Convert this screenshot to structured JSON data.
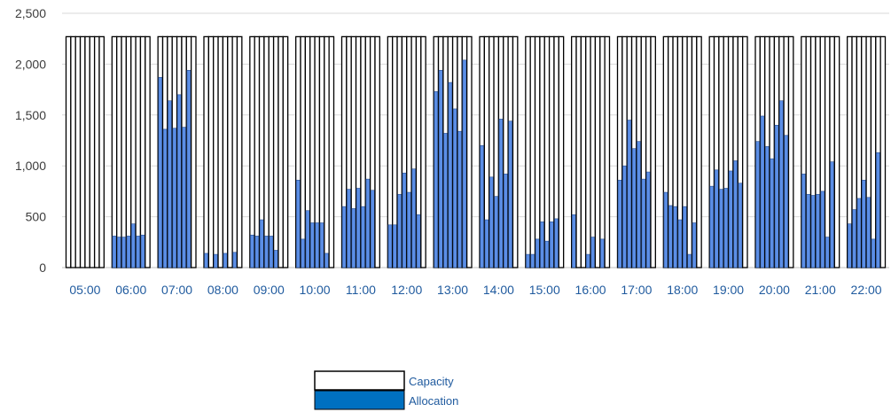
{
  "chart_data": {
    "type": "bar",
    "grouped_by_hour": true,
    "bars_per_hour": 8,
    "categories": [
      "05:00",
      "06:00",
      "07:00",
      "08:00",
      "09:00",
      "10:00",
      "11:00",
      "12:00",
      "13:00",
      "14:00",
      "15:00",
      "16:00",
      "17:00",
      "18:00",
      "19:00",
      "20:00",
      "21:00",
      "22:00"
    ],
    "y_ticks": [
      "0",
      "500",
      "1,000",
      "1,500",
      "2,000",
      "2,500"
    ],
    "ylim": [
      0,
      2500
    ],
    "grid": true,
    "legend_position": "bottom-center",
    "series": [
      {
        "name": "Capacity",
        "style": "outlined",
        "fill": "#ffffff",
        "stroke": "#000000",
        "values": [
          [
            2270,
            2270,
            2270,
            2270,
            2270,
            2270,
            2270,
            2270
          ],
          [
            2270,
            2270,
            2270,
            2270,
            2270,
            2270,
            2270,
            2270
          ],
          [
            2270,
            2270,
            2270,
            2270,
            2270,
            2270,
            2270,
            2270
          ],
          [
            2270,
            2270,
            2270,
            2270,
            2270,
            2270,
            2270,
            2270
          ],
          [
            2270,
            2270,
            2270,
            2270,
            2270,
            2270,
            2270,
            2270
          ],
          [
            2270,
            2270,
            2270,
            2270,
            2270,
            2270,
            2270,
            2270
          ],
          [
            2270,
            2270,
            2270,
            2270,
            2270,
            2270,
            2270,
            2270
          ],
          [
            2270,
            2270,
            2270,
            2270,
            2270,
            2270,
            2270,
            2270
          ],
          [
            2270,
            2270,
            2270,
            2270,
            2270,
            2270,
            2270,
            2270
          ],
          [
            2270,
            2270,
            2270,
            2270,
            2270,
            2270,
            2270,
            2270
          ],
          [
            2270,
            2270,
            2270,
            2270,
            2270,
            2270,
            2270,
            2270
          ],
          [
            2270,
            2270,
            2270,
            2270,
            2270,
            2270,
            2270,
            2270
          ],
          [
            2270,
            2270,
            2270,
            2270,
            2270,
            2270,
            2270,
            2270
          ],
          [
            2270,
            2270,
            2270,
            2270,
            2270,
            2270,
            2270,
            2270
          ],
          [
            2270,
            2270,
            2270,
            2270,
            2270,
            2270,
            2270,
            2270
          ],
          [
            2270,
            2270,
            2270,
            2270,
            2270,
            2270,
            2270,
            2270
          ],
          [
            2270,
            2270,
            2270,
            2270,
            2270,
            2270,
            2270,
            2270
          ],
          [
            2270,
            2270,
            2270,
            2270,
            2270,
            2270,
            2270,
            2270
          ]
        ]
      },
      {
        "name": "Allocation",
        "style": "filled",
        "fill": "#5b8ee6",
        "stroke": "#2b4f8c",
        "legend_fill": "#0070c0",
        "values": [
          [
            0,
            0,
            0,
            0,
            0,
            0,
            0,
            0
          ],
          [
            310,
            300,
            300,
            310,
            430,
            310,
            320,
            0
          ],
          [
            1870,
            1360,
            1640,
            1370,
            1700,
            1380,
            1940,
            0
          ],
          [
            140,
            0,
            130,
            0,
            140,
            0,
            150,
            0
          ],
          [
            320,
            310,
            470,
            310,
            310,
            170,
            0,
            0
          ],
          [
            860,
            280,
            560,
            440,
            440,
            440,
            140,
            0
          ],
          [
            600,
            770,
            580,
            780,
            600,
            870,
            760,
            0
          ],
          [
            420,
            420,
            720,
            930,
            740,
            970,
            520,
            0
          ],
          [
            1730,
            1940,
            1320,
            1820,
            1560,
            1340,
            2040,
            0
          ],
          [
            1200,
            470,
            890,
            700,
            1460,
            920,
            1440,
            0
          ],
          [
            130,
            130,
            280,
            450,
            260,
            450,
            480,
            0
          ],
          [
            520,
            0,
            0,
            130,
            300,
            0,
            280,
            0
          ],
          [
            860,
            1000,
            1450,
            1170,
            1240,
            870,
            940,
            0
          ],
          [
            740,
            610,
            600,
            470,
            600,
            130,
            440,
            0
          ],
          [
            800,
            960,
            770,
            780,
            950,
            1050,
            830,
            0
          ],
          [
            1240,
            1490,
            1190,
            1070,
            1400,
            1640,
            1300,
            0
          ],
          [
            920,
            720,
            710,
            720,
            750,
            300,
            1040,
            0
          ],
          [
            430,
            570,
            680,
            860,
            690,
            280,
            1130,
            0
          ]
        ]
      }
    ]
  }
}
